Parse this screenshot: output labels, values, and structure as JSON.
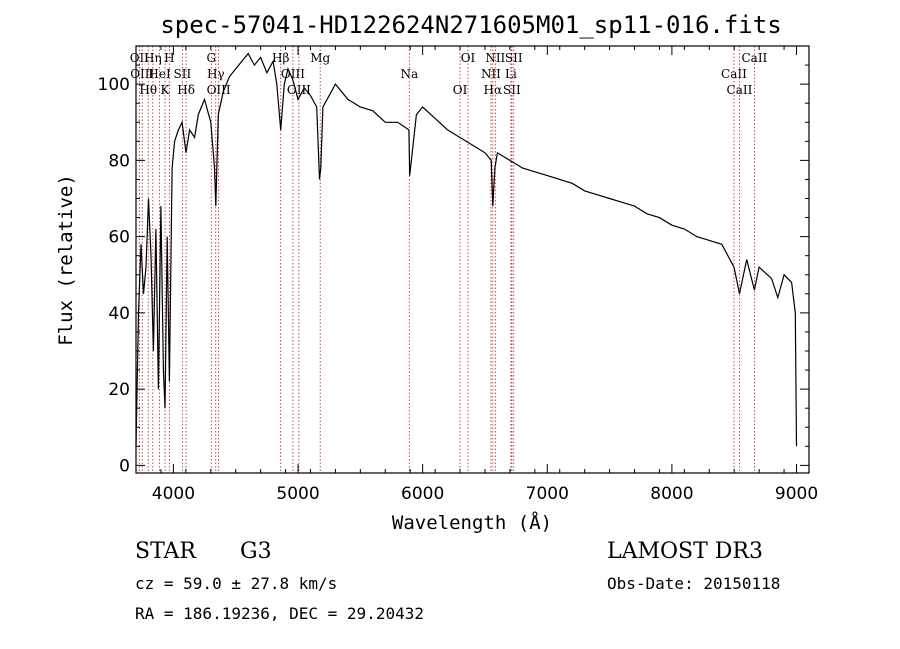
{
  "chart_data": {
    "type": "line",
    "title": "spec-57041-HD122624N271605M01_sp11-016.fits",
    "xlabel": "Wavelength (Å)",
    "ylabel": "Flux (relative)",
    "xlim": [
      3700,
      9100
    ],
    "ylim": [
      -2,
      110
    ],
    "x_ticks": [
      4000,
      5000,
      6000,
      7000,
      8000,
      9000
    ],
    "y_ticks": [
      0,
      20,
      40,
      60,
      80,
      100
    ],
    "spectrum": {
      "x": [
        3700,
        3720,
        3740,
        3760,
        3780,
        3800,
        3820,
        3840,
        3860,
        3880,
        3900,
        3920,
        3933,
        3950,
        3968,
        3990,
        4010,
        4040,
        4070,
        4101,
        4130,
        4170,
        4200,
        4250,
        4300,
        4330,
        4340,
        4360,
        4400,
        4450,
        4500,
        4550,
        4600,
        4650,
        4700,
        4750,
        4800,
        4830,
        4861,
        4890,
        4920,
        4960,
        5000,
        5050,
        5100,
        5150,
        5172,
        5183,
        5200,
        5250,
        5300,
        5400,
        5500,
        5600,
        5700,
        5800,
        5890,
        5896,
        5950,
        6000,
        6100,
        6200,
        6300,
        6400,
        6500,
        6550,
        6563,
        6580,
        6600,
        6700,
        6800,
        6900,
        7000,
        7100,
        7200,
        7300,
        7400,
        7500,
        7600,
        7700,
        7800,
        7900,
        8000,
        8100,
        8200,
        8300,
        8400,
        8498,
        8542,
        8600,
        8662,
        8700,
        8800,
        8850,
        8900,
        8960,
        8990,
        9000
      ],
      "y": [
        5,
        40,
        58,
        45,
        52,
        70,
        55,
        30,
        62,
        20,
        68,
        25,
        15,
        60,
        22,
        78,
        85,
        88,
        90,
        82,
        88,
        86,
        92,
        96,
        90,
        78,
        68,
        92,
        98,
        102,
        104,
        106,
        108,
        105,
        107,
        103,
        106,
        100,
        88,
        100,
        104,
        101,
        96,
        99,
        97,
        94,
        75,
        78,
        94,
        97,
        100,
        96,
        94,
        93,
        90,
        90,
        88,
        76,
        92,
        94,
        91,
        88,
        86,
        84,
        82,
        80,
        68,
        78,
        82,
        80,
        78,
        77,
        76,
        75,
        74,
        72,
        71,
        70,
        69,
        68,
        66,
        65,
        63,
        62,
        60,
        59,
        58,
        52,
        45,
        54,
        46,
        52,
        49,
        44,
        50,
        48,
        40,
        5
      ]
    },
    "spectral_lines": [
      {
        "x": 3727,
        "label": "OII"
      },
      {
        "x": 3750,
        "label": "OIII"
      },
      {
        "x": 3798,
        "label": "Hθ"
      },
      {
        "x": 3835,
        "label": "Hη"
      },
      {
        "x": 3889,
        "label": "HeI"
      },
      {
        "x": 3933,
        "label": "K"
      },
      {
        "x": 3968,
        "label": "H"
      },
      {
        "x": 4072,
        "label": "SII"
      },
      {
        "x": 4102,
        "label": "Hδ"
      },
      {
        "x": 4304,
        "label": "G"
      },
      {
        "x": 4340,
        "label": "Hγ"
      },
      {
        "x": 4363,
        "label": "OIII"
      },
      {
        "x": 4861,
        "label": "Hβ"
      },
      {
        "x": 4959,
        "label": "OIII"
      },
      {
        "x": 5007,
        "label": "OIII"
      },
      {
        "x": 5178,
        "label": "Mg"
      },
      {
        "x": 5893,
        "label": "Na"
      },
      {
        "x": 6300,
        "label": "OI"
      },
      {
        "x": 6364,
        "label": "OI"
      },
      {
        "x": 6548,
        "label": "NII"
      },
      {
        "x": 6563,
        "label": "Hα"
      },
      {
        "x": 6583,
        "label": "NII"
      },
      {
        "x": 6708,
        "label": "Li"
      },
      {
        "x": 6716,
        "label": "SII"
      },
      {
        "x": 6731,
        "label": "SII"
      },
      {
        "x": 8498,
        "label": "CaII"
      },
      {
        "x": 8542,
        "label": "CaII"
      },
      {
        "x": 8662,
        "label": "CaII"
      }
    ]
  },
  "info": {
    "object_class": "STAR",
    "subclass": "G3",
    "survey": "LAMOST DR3",
    "cz": "cz = 59.0 ± 27.8 km/s",
    "obs_date": "Obs-Date: 20150118",
    "coords": "RA = 186.19236, DEC =  29.20432"
  }
}
